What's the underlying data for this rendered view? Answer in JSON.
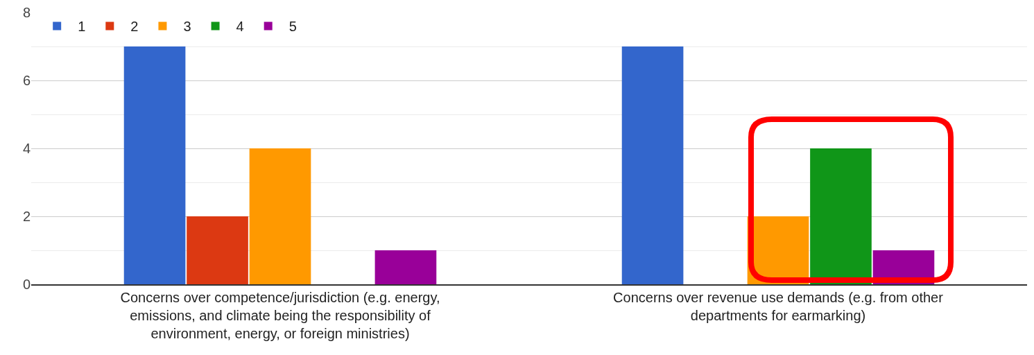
{
  "chart_data": {
    "type": "bar",
    "categories": [
      "Concerns over competence/jurisdiction (e.g. energy, emissions, and climate being the responsibility of environment, energy, or foreign ministries)",
      "Concerns over revenue use demands (e.g. from other departments for earmarking)"
    ],
    "series": [
      {
        "name": "1",
        "color": "#3366cc",
        "values": [
          7,
          7
        ]
      },
      {
        "name": "2",
        "color": "#dc3912",
        "values": [
          2,
          0
        ]
      },
      {
        "name": "3",
        "color": "#ff9900",
        "values": [
          4,
          2
        ]
      },
      {
        "name": "4",
        "color": "#109618",
        "values": [
          0,
          4
        ]
      },
      {
        "name": "5",
        "color": "#990099",
        "values": [
          1,
          1
        ]
      }
    ],
    "ylim": [
      0,
      8
    ],
    "yticks": [
      0,
      2,
      4,
      6,
      8
    ],
    "grid": "y",
    "legend": "top left"
  }
}
